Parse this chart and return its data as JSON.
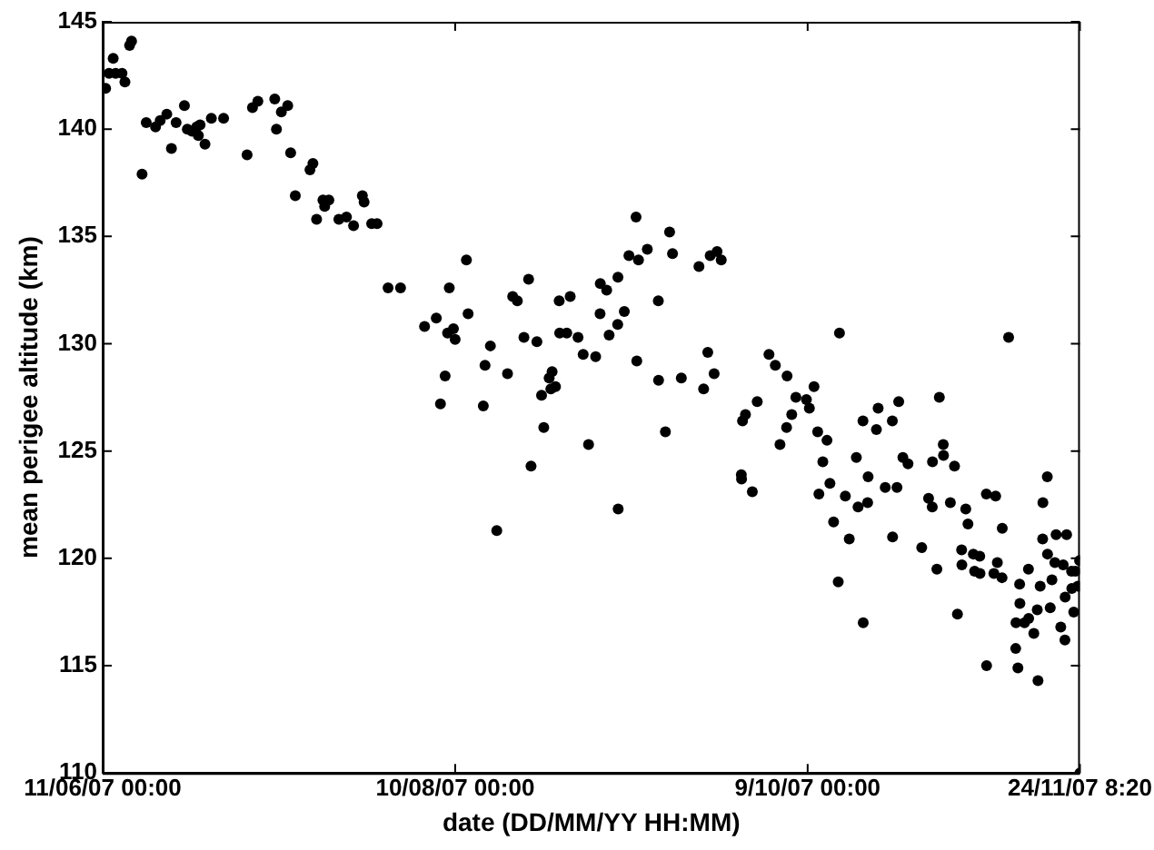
{
  "chart_data": {
    "type": "scatter",
    "xlabel": "date (DD/MM/YY HH:MM)",
    "ylabel": "mean perigee altitude (km)",
    "x": [
      "2007-06-11T12:00",
      "2007-06-12T02:00",
      "2007-06-12T19:00",
      "2007-06-13T05:00",
      "2007-06-14T07:00",
      "2007-06-14T19:00",
      "2007-06-15T14:00",
      "2007-06-15T22:00",
      "2007-06-17T17:00",
      "2007-06-18T10:00",
      "2007-06-20T00:00",
      "2007-06-20T19:00",
      "2007-06-21T22:00",
      "2007-06-22T17:00",
      "2007-06-23T12:00",
      "2007-06-24T22:00",
      "2007-06-25T10:00",
      "2007-06-26T05:00",
      "2007-06-27T00:00",
      "2007-06-27T07:00",
      "2007-06-27T14:00",
      "2007-06-28T10:00",
      "2007-06-29T12:00",
      "2007-07-01T14:00",
      "2007-07-05T14:00",
      "2007-07-06T12:00",
      "2007-07-07T10:00",
      "2007-07-10T07:00",
      "2007-07-10T14:00",
      "2007-07-11T10:00",
      "2007-07-12T12:00",
      "2007-07-13T00:00",
      "2007-07-13T19:00",
      "2007-07-16T07:00",
      "2007-07-16T19:00",
      "2007-07-17T10:00",
      "2007-07-18T12:00",
      "2007-07-18T19:00",
      "2007-07-19T12:00",
      "2007-07-21T05:00",
      "2007-07-22T12:00",
      "2007-07-23T17:00",
      "2007-07-25T05:00",
      "2007-07-25T12:00",
      "2007-07-26T19:00",
      "2007-07-27T17:00",
      "2007-07-29T14:00",
      "2007-07-31T17:00",
      "2007-08-04T19:00",
      "2007-08-06T19:00",
      "2007-08-07T12:00",
      "2007-08-08T07:00",
      "2007-08-08T17:00",
      "2007-08-09T00:00",
      "2007-08-09T17:00",
      "2007-08-10T00:00",
      "2007-08-11T22:00",
      "2007-08-12T05:00",
      "2007-08-14T19:00",
      "2007-08-15T02:00",
      "2007-08-16T00:00",
      "2007-08-17T02:00",
      "2007-08-18T22:00",
      "2007-08-19T19:00",
      "2007-08-20T14:00",
      "2007-08-21T17:00",
      "2007-08-22T12:00",
      "2007-08-22T22:00",
      "2007-08-23T22:00",
      "2007-08-24T17:00",
      "2007-08-25T02:00",
      "2007-08-26T00:00",
      "2007-08-26T07:00",
      "2007-08-26T12:00",
      "2007-08-27T02:00",
      "2007-08-27T17:00",
      "2007-08-27T19:00",
      "2007-08-29T00:00",
      "2007-08-29T14:00",
      "2007-08-30T22:00",
      "2007-08-31T19:00",
      "2007-09-01T17:00",
      "2007-09-02T22:00",
      "2007-09-03T17:00",
      "2007-09-03T16:00",
      "2007-09-04T19:00",
      "2007-09-05T05:00",
      "2007-09-06T17:00",
      "2007-09-06T16:00",
      "2007-09-06T18:00",
      "2007-09-07T19:00",
      "2007-09-08T14:00",
      "2007-09-09T19:00",
      "2007-09-09T22:00",
      "2007-09-10T05:00",
      "2007-09-11T17:00",
      "2007-09-13T14:00",
      "2007-09-13T15:00",
      "2007-09-14T19:00",
      "2007-09-15T12:00",
      "2007-09-16T00:00",
      "2007-09-17T12:00",
      "2007-09-20T12:00",
      "2007-09-21T07:00",
      "2007-09-22T00:00",
      "2007-09-22T10:00",
      "2007-09-23T02:00",
      "2007-09-23T14:00",
      "2007-09-24T07:00",
      "2007-09-27T17:00",
      "2007-09-27T18:00",
      "2007-09-27T22:00",
      "2007-09-28T10:00",
      "2007-09-29T14:00",
      "2007-09-30T10:00",
      "2007-10-02T10:00",
      "2007-10-03T12:00",
      "2007-10-04T07:00",
      "2007-10-05T10:00",
      "2007-10-05T12:00",
      "2007-10-06T07:00",
      "2007-10-07T00:00",
      "2007-10-08T19:00",
      "2007-10-09T07:00",
      "2007-10-10T02:00",
      "2007-10-10T17:00",
      "2007-10-10T22:00",
      "2007-10-11T14:00",
      "2007-10-12T07:00",
      "2007-10-12T19:00",
      "2007-10-13T10:00",
      "2007-10-14T05:00",
      "2007-10-14T10:00",
      "2007-10-15T10:00",
      "2007-10-16T02:00",
      "2007-10-17T07:00",
      "2007-10-17T14:00",
      "2007-10-18T10:00",
      "2007-10-18T11:00",
      "2007-10-19T05:00",
      "2007-10-19T07:00",
      "2007-10-20T17:00",
      "2007-10-21T00:00",
      "2007-10-22T05:00",
      "2007-10-23T10:00",
      "2007-10-23T11:00",
      "2007-10-24T05:00",
      "2007-10-24T12:00",
      "2007-10-25T05:00",
      "2007-10-26T02:00",
      "2007-10-28T10:00",
      "2007-10-29T14:00",
      "2007-10-30T05:00",
      "2007-10-30T06:00",
      "2007-10-31T00:00",
      "2007-10-31T10:00",
      "2007-11-01T02:00",
      "2007-11-01T03:00",
      "2007-11-02T07:00",
      "2007-11-03T00:00",
      "2007-11-03T12:00",
      "2007-11-04T05:00",
      "2007-11-04T06:00",
      "2007-11-04T22:00",
      "2007-11-05T07:00",
      "2007-11-06T05:00",
      "2007-11-06T10:00",
      "2007-11-07T07:00",
      "2007-11-07T08:00",
      "2007-11-08T10:00",
      "2007-11-08T11:00",
      "2007-11-09T17:00",
      "2007-11-10T00:00",
      "2007-11-10T07:00",
      "2007-11-11T02:00",
      "2007-11-11T03:00",
      "2007-11-12T05:00",
      "2007-11-13T10:00",
      "2007-11-13T11:00",
      "2007-11-13T19:00",
      "2007-11-14T02:00",
      "2007-11-14T03:00",
      "2007-11-14T22:00",
      "2007-11-15T14:00",
      "2007-11-15T15:00",
      "2007-11-16T12:00",
      "2007-11-17T02:00",
      "2007-11-17T05:00",
      "2007-11-17T14:00",
      "2007-11-18T00:00",
      "2007-11-18T01:00",
      "2007-11-18T19:00",
      "2007-11-18T20:00",
      "2007-11-19T07:00",
      "2007-11-19T14:00",
      "2007-11-20T02:00",
      "2007-11-20T07:00",
      "2007-11-21T02:00",
      "2007-11-21T12:00",
      "2007-11-21T19:00",
      "2007-11-21T20:00",
      "2007-11-22T02:00",
      "2007-11-22T22:00",
      "2007-11-22T23:00",
      "2007-11-23T07:00",
      "2007-11-23T14:00",
      "2007-11-24T00:00",
      "2007-11-24T07:00",
      "2007-11-24T08:20"
    ],
    "series": [
      {
        "color": "#000000",
        "values": [
          141.9,
          142.6,
          143.3,
          142.6,
          142.6,
          142.2,
          143.9,
          144.1,
          137.9,
          140.3,
          140.1,
          140.4,
          140.7,
          139.1,
          140.3,
          141.1,
          140.0,
          139.9,
          140.1,
          139.7,
          140.2,
          139.3,
          140.5,
          140.5,
          138.8,
          141.0,
          141.3,
          141.4,
          140.0,
          140.8,
          141.1,
          138.9,
          136.9,
          138.1,
          138.4,
          135.8,
          136.7,
          136.4,
          136.7,
          135.8,
          135.9,
          135.5,
          136.9,
          136.6,
          135.6,
          135.6,
          132.6,
          132.6,
          130.8,
          131.2,
          127.2,
          128.5,
          130.5,
          132.6,
          130.7,
          130.2,
          133.9,
          131.4,
          127.1,
          129.0,
          129.9,
          121.3,
          128.6,
          132.2,
          132.0,
          130.3,
          133.0,
          124.3,
          130.1,
          127.6,
          126.1,
          128.4,
          127.9,
          128.7,
          128.0,
          132.0,
          130.5,
          130.5,
          132.2,
          130.3,
          129.5,
          125.3,
          129.4,
          132.8,
          131.4,
          132.5,
          130.4,
          133.1,
          130.9,
          122.3,
          131.5,
          134.1,
          135.9,
          129.2,
          133.9,
          134.4,
          132.0,
          128.3,
          125.9,
          135.2,
          134.2,
          128.4,
          133.6,
          127.9,
          129.6,
          134.1,
          128.6,
          134.3,
          133.9,
          123.9,
          123.7,
          126.4,
          126.7,
          123.1,
          127.3,
          129.5,
          129.0,
          125.3,
          126.1,
          128.5,
          126.7,
          127.5,
          127.4,
          127.0,
          128.0,
          125.9,
          123.0,
          124.5,
          125.5,
          123.5,
          121.7,
          118.9,
          130.5,
          122.9,
          120.9,
          124.7,
          122.4,
          126.4,
          117.0,
          122.6,
          123.8,
          126.0,
          127.0,
          123.3,
          126.4,
          121.0,
          123.3,
          127.3,
          124.7,
          124.4,
          120.5,
          122.8,
          122.4,
          124.5,
          119.5,
          127.5,
          125.3,
          124.8,
          122.6,
          124.3,
          117.4,
          120.4,
          119.7,
          122.3,
          121.6,
          120.2,
          119.4,
          120.1,
          119.3,
          123.0,
          115.0,
          119.3,
          122.9,
          119.8,
          119.1,
          121.4,
          130.3,
          115.8,
          117.0,
          114.9,
          118.8,
          117.9,
          117.0,
          119.5,
          117.2,
          116.5,
          117.6,
          114.3,
          118.7,
          120.9,
          122.6,
          123.8,
          120.2,
          117.7,
          119.0,
          119.8,
          121.1,
          116.8,
          119.7,
          116.2,
          118.2,
          121.1,
          119.4,
          118.6,
          117.5,
          119.4,
          118.7,
          119.9,
          110.0
        ]
      }
    ],
    "xlim": [
      "2007-06-11T00:00",
      "2007-11-24T08:20"
    ],
    "xticks": [
      {
        "value": "2007-06-11T00:00",
        "label": "11/06/07 00:00"
      },
      {
        "value": "2007-08-10T00:00",
        "label": "10/08/07 00:00"
      },
      {
        "value": "2007-10-09T00:00",
        "label": "9/10/07 00:00"
      },
      {
        "value": "2007-11-24T08:20",
        "label": "24/11/07 8:20"
      }
    ],
    "ylim": [
      110,
      145
    ],
    "yticks": [
      110,
      115,
      120,
      125,
      130,
      135,
      140,
      145
    ],
    "grid": false,
    "legend": false,
    "marker": "circle"
  }
}
